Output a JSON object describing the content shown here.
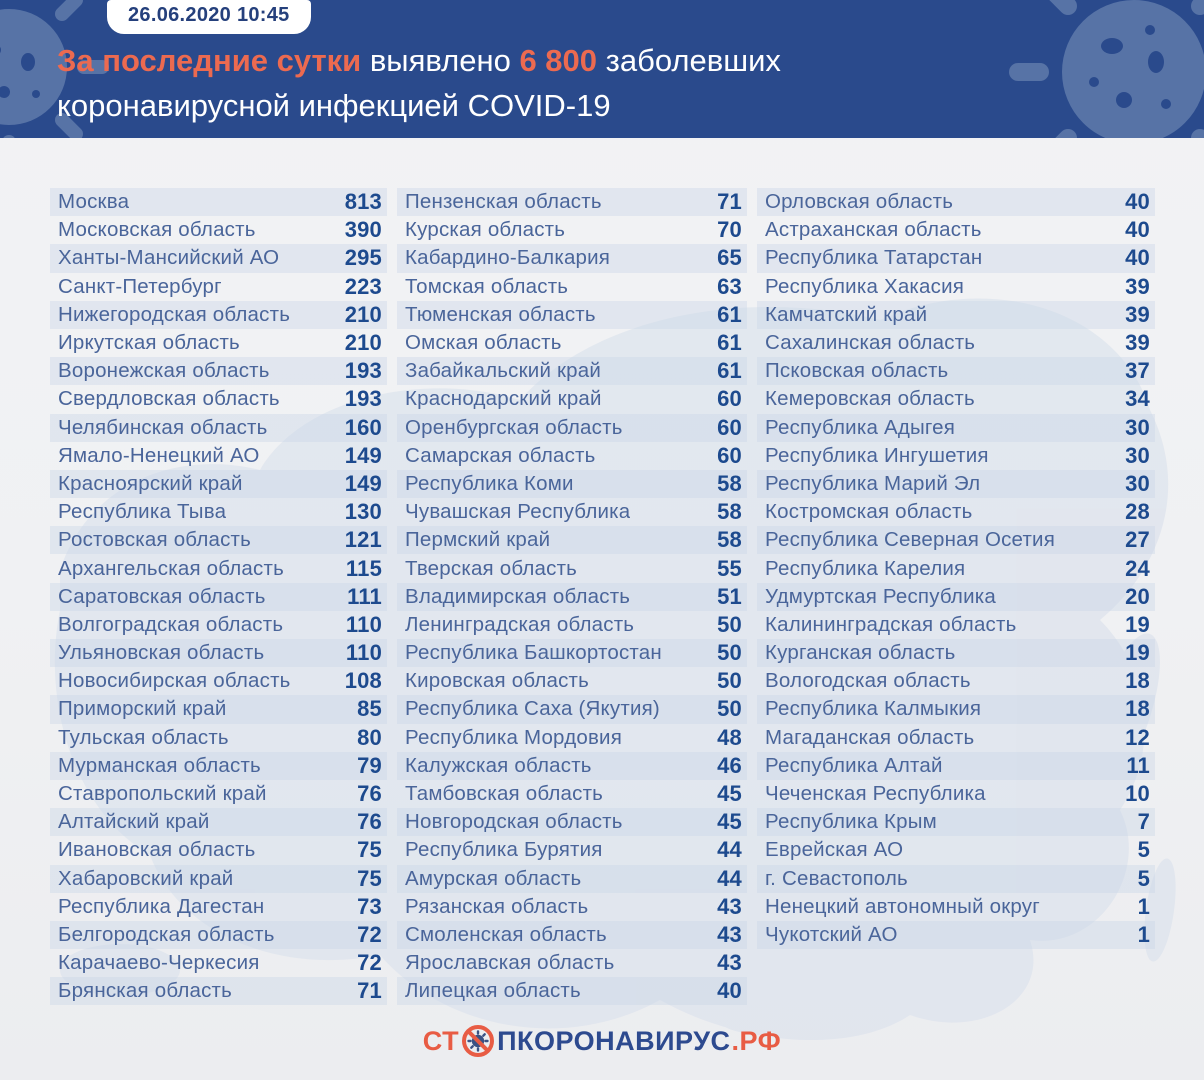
{
  "header": {
    "badge": "26.06.2020 10:45",
    "headline_accent1": "За последние сутки",
    "headline_mid": " выявлено ",
    "headline_accent2": "6 800",
    "headline_tail": " заболевших",
    "headline_line2": "коронавирусной инфекцией COVID-19"
  },
  "footer": {
    "logo_prefix": "СТ",
    "logo_main": "ПКОРОНАВИРУС",
    "logo_suffix": ".РФ"
  },
  "colors": {
    "header_bg": "#2a4a8c",
    "accent_orange": "#ec6a50",
    "row_stripe": "#e3e9f1",
    "region_text": "#4a659a",
    "value_text": "#1d4a8e",
    "logo_orange": "#e85c44",
    "logo_blue": "#2d4a8f"
  },
  "chart_data": {
    "type": "table",
    "title": "За последние сутки выявлено 6 800 заболевших коронавирусной инфекцией COVID-19",
    "timestamp": "26.06.2020 10:45",
    "total_new_cases": "6 800",
    "columns": [
      {
        "rows": [
          {
            "region": "Москва",
            "value": "813"
          },
          {
            "region": "Московская область",
            "value": "390"
          },
          {
            "region": "Ханты-Мансийский АО",
            "value": "295"
          },
          {
            "region": "Санкт-Петербург",
            "value": "223"
          },
          {
            "region": "Нижегородская область",
            "value": "210"
          },
          {
            "region": "Иркутская область",
            "value": "210"
          },
          {
            "region": "Воронежская область",
            "value": "193"
          },
          {
            "region": "Свердловская область",
            "value": "193"
          },
          {
            "region": "Челябинская область",
            "value": "160"
          },
          {
            "region": "Ямало-Ненецкий АО",
            "value": "149"
          },
          {
            "region": "Красноярский край",
            "value": "149"
          },
          {
            "region": "Республика Тыва",
            "value": "130"
          },
          {
            "region": "Ростовская область",
            "value": "121"
          },
          {
            "region": "Архангельская область",
            "value": "115"
          },
          {
            "region": "Саратовская область",
            "value": "111"
          },
          {
            "region": "Волгоградская область",
            "value": "110"
          },
          {
            "region": "Ульяновская область",
            "value": "110"
          },
          {
            "region": "Новосибирская область",
            "value": "108"
          },
          {
            "region": "Приморский край",
            "value": "85"
          },
          {
            "region": "Тульская область",
            "value": "80"
          },
          {
            "region": "Мурманская область",
            "value": "79"
          },
          {
            "region": "Ставропольский край",
            "value": "76"
          },
          {
            "region": "Алтайский край",
            "value": "76"
          },
          {
            "region": "Ивановская область",
            "value": "75"
          },
          {
            "region": "Хабаровский край",
            "value": "75"
          },
          {
            "region": "Республика Дагестан",
            "value": "73"
          },
          {
            "region": "Белгородская область",
            "value": "72"
          },
          {
            "region": "Карачаево-Черкесия",
            "value": "72"
          },
          {
            "region": "Брянская область",
            "value": "71"
          }
        ]
      },
      {
        "rows": [
          {
            "region": "Пензенская область",
            "value": "71"
          },
          {
            "region": "Курская область",
            "value": "70"
          },
          {
            "region": "Кабардино-Балкария",
            "value": "65"
          },
          {
            "region": "Томская область",
            "value": "63"
          },
          {
            "region": "Тюменская область",
            "value": "61"
          },
          {
            "region": "Омская область",
            "value": "61"
          },
          {
            "region": "Забайкальский край",
            "value": "61"
          },
          {
            "region": "Краснодарский край",
            "value": "60"
          },
          {
            "region": "Оренбургская область",
            "value": "60"
          },
          {
            "region": "Самарская область",
            "value": "60"
          },
          {
            "region": "Республика Коми",
            "value": "58"
          },
          {
            "region": "Чувашская Республика",
            "value": "58"
          },
          {
            "region": "Пермский край",
            "value": "58"
          },
          {
            "region": "Тверская область",
            "value": "55"
          },
          {
            "region": "Владимирская область",
            "value": "51"
          },
          {
            "region": "Ленинградская область",
            "value": "50"
          },
          {
            "region": "Республика Башкортостан",
            "value": "50"
          },
          {
            "region": "Кировская область",
            "value": "50"
          },
          {
            "region": "Республика Саха (Якутия)",
            "value": "50"
          },
          {
            "region": "Республика Мордовия",
            "value": "48"
          },
          {
            "region": "Калужская область",
            "value": "46"
          },
          {
            "region": "Тамбовская область",
            "value": "45"
          },
          {
            "region": "Новгородская область",
            "value": "45"
          },
          {
            "region": "Республика Бурятия",
            "value": "44"
          },
          {
            "region": "Амурская область",
            "value": "44"
          },
          {
            "region": "Рязанская область",
            "value": "43"
          },
          {
            "region": "Смоленская область",
            "value": "43"
          },
          {
            "region": "Ярославская область",
            "value": "43"
          },
          {
            "region": "Липецкая область",
            "value": "40"
          }
        ]
      },
      {
        "rows": [
          {
            "region": "Орловская область",
            "value": "40"
          },
          {
            "region": "Астраханская область",
            "value": "40"
          },
          {
            "region": "Республика Татарстан",
            "value": "40"
          },
          {
            "region": "Республика Хакасия",
            "value": "39"
          },
          {
            "region": "Камчатский край",
            "value": "39"
          },
          {
            "region": "Сахалинская область",
            "value": "39"
          },
          {
            "region": "Псковская область",
            "value": "37"
          },
          {
            "region": "Кемеровская область",
            "value": "34"
          },
          {
            "region": "Республика Адыгея",
            "value": "30"
          },
          {
            "region": "Республика Ингушетия",
            "value": "30"
          },
          {
            "region": "Республика Марий Эл",
            "value": "30"
          },
          {
            "region": "Костромская область",
            "value": "28"
          },
          {
            "region": "Республика Северная Осетия",
            "value": "27"
          },
          {
            "region": "Республика Карелия",
            "value": "24"
          },
          {
            "region": "Удмуртская Республика",
            "value": "20"
          },
          {
            "region": "Калининградская область",
            "value": "19"
          },
          {
            "region": "Курганская область",
            "value": "19"
          },
          {
            "region": "Вологодская область",
            "value": "18"
          },
          {
            "region": "Республика Калмыкия",
            "value": "18"
          },
          {
            "region": "Магаданская область",
            "value": "12"
          },
          {
            "region": "Республика Алтай",
            "value": "11"
          },
          {
            "region": "Чеченская Республика",
            "value": "10"
          },
          {
            "region": "Республика Крым",
            "value": "7"
          },
          {
            "region": "Еврейская АО",
            "value": "5"
          },
          {
            "region": "г. Севастополь",
            "value": "5"
          },
          {
            "region": "Ненецкий автономный округ",
            "value": "1"
          },
          {
            "region": "Чукотский АО",
            "value": "1"
          }
        ]
      }
    ]
  }
}
